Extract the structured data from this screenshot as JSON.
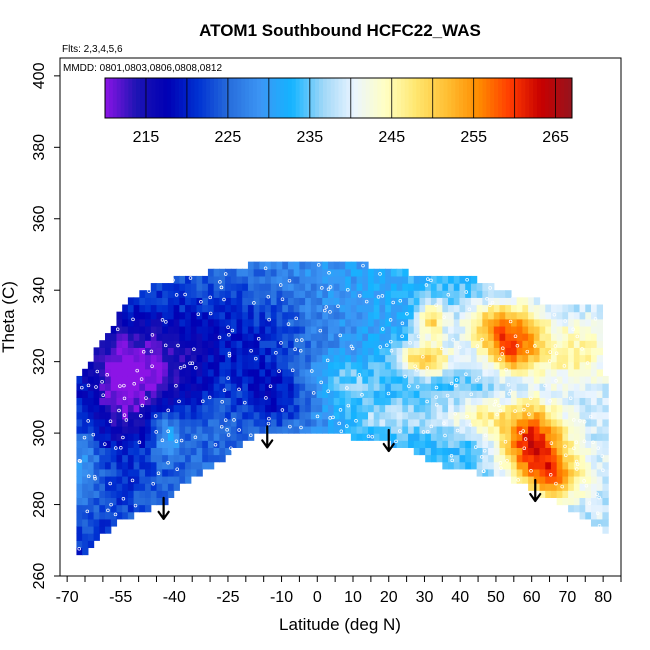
{
  "chart_data": {
    "type": "heatmap",
    "title": "ATOM1 Southbound HCFC22_WAS",
    "notes": {
      "flights": "Flts: 2,3,4,5,6",
      "dates": "MMDD: 0801,0803,0806,0808,0812"
    },
    "xlabel": "Latitude (deg N)",
    "ylabel": "Theta (C)",
    "xlim": [
      -72,
      85
    ],
    "ylim": [
      260,
      405
    ],
    "x_ticks": [
      {
        "v": -70,
        "t": "-70"
      },
      {
        "v": -55,
        "t": "-55"
      },
      {
        "v": -40,
        "t": "-40"
      },
      {
        "v": -25,
        "t": "-25"
      },
      {
        "v": -10,
        "t": "-10"
      },
      {
        "v": 0,
        "t": "0"
      },
      {
        "v": 10,
        "t": "10"
      },
      {
        "v": 20,
        "t": "20"
      },
      {
        "v": 30,
        "t": "30"
      },
      {
        "v": 40,
        "t": "40"
      },
      {
        "v": 50,
        "t": "50"
      },
      {
        "v": 60,
        "t": "60"
      },
      {
        "v": 70,
        "t": "70"
      },
      {
        "v": 80,
        "t": "80"
      }
    ],
    "x_minor_ticks": [
      -65,
      -60,
      -50,
      -45,
      -35,
      -30,
      -20,
      -15,
      -5,
      5,
      15,
      25,
      35,
      45,
      55,
      65,
      75,
      85
    ],
    "y_ticks": [
      {
        "v": 260,
        "t": "260"
      },
      {
        "v": 280,
        "t": "280"
      },
      {
        "v": 300,
        "t": "300"
      },
      {
        "v": 320,
        "t": "320"
      },
      {
        "v": 340,
        "t": "340"
      },
      {
        "v": 360,
        "t": "360"
      },
      {
        "v": 380,
        "t": "380"
      },
      {
        "v": 400,
        "t": "400"
      }
    ],
    "colorbar": {
      "range": [
        210,
        267
      ],
      "labels": [
        {
          "v": 215,
          "t": "215"
        },
        {
          "v": 225,
          "t": "225"
        },
        {
          "v": 235,
          "t": "235"
        },
        {
          "v": 245,
          "t": "245"
        },
        {
          "v": 255,
          "t": "255"
        },
        {
          "v": 265,
          "t": "265"
        }
      ],
      "dividers": [
        215,
        220,
        225,
        230,
        235,
        240,
        245,
        250,
        255,
        260,
        265
      ],
      "colors": [
        "#8c14e6",
        "#1e14b4",
        "#0000b4",
        "#0032d2",
        "#286edc",
        "#3c96f5",
        "#14b4ff",
        "#9fd7f8",
        "#ebf5ff",
        "#ffffc3",
        "#ffe66e",
        "#ffbe32",
        "#ff8c00",
        "#ff3c00",
        "#c80000",
        "#96141e"
      ]
    },
    "arrows": [
      {
        "lat": -43,
        "theta": 276
      },
      {
        "lat": -14,
        "theta": 296
      },
      {
        "lat": 20,
        "theta": 295
      },
      {
        "lat": 61,
        "theta": 281
      }
    ],
    "domain_top": [
      [
        -68,
        314
      ],
      [
        -60,
        326
      ],
      [
        -53,
        337
      ],
      [
        -45,
        342
      ],
      [
        -35,
        344
      ],
      [
        -25,
        346
      ],
      [
        -15,
        348
      ],
      [
        -5,
        349
      ],
      [
        5,
        349
      ],
      [
        15,
        347
      ],
      [
        25,
        345
      ],
      [
        35,
        344
      ],
      [
        45,
        343
      ],
      [
        55,
        339
      ],
      [
        65,
        336
      ],
      [
        75,
        337
      ],
      [
        80,
        335
      ]
    ],
    "domain_right": [
      [
        80,
        335
      ],
      [
        81,
        305
      ],
      [
        82,
        295
      ],
      [
        81,
        272
      ]
    ],
    "domain_bottom": [
      [
        81,
        272
      ],
      [
        75,
        276
      ],
      [
        65,
        282
      ],
      [
        55,
        287
      ],
      [
        45,
        289
      ],
      [
        35,
        291
      ],
      [
        25,
        296
      ],
      [
        15,
        298
      ],
      [
        5,
        300
      ],
      [
        -5,
        299
      ],
      [
        -12,
        301
      ],
      [
        -20,
        298
      ],
      [
        -30,
        290
      ],
      [
        -38,
        285
      ],
      [
        -43,
        280
      ],
      [
        -50,
        278
      ],
      [
        -56,
        275
      ],
      [
        -62,
        270
      ],
      [
        -66,
        266
      ],
      [
        -68,
        265
      ]
    ],
    "field_model": {
      "base_value": 229,
      "lat_slope": 0.12,
      "anomalies": [
        {
          "lat": -45,
          "theta": 318,
          "value": -10,
          "rx": 15,
          "ry": 14
        },
        {
          "lat": -55,
          "theta": 312,
          "value": -9,
          "rx": 8,
          "ry": 16
        },
        {
          "lat": -20,
          "theta": 328,
          "value": -6,
          "rx": 22,
          "ry": 14
        },
        {
          "lat": -12,
          "theta": 310,
          "value": -8,
          "rx": 10,
          "ry": 10
        },
        {
          "lat": -66,
          "theta": 290,
          "value": 8,
          "rx": 6,
          "ry": 12
        },
        {
          "lat": -42,
          "theta": 300,
          "value": 9,
          "rx": 4,
          "ry": 6
        },
        {
          "lat": 30,
          "theta": 321,
          "value": 18,
          "rx": 8,
          "ry": 5
        },
        {
          "lat": 32,
          "theta": 332,
          "value": 16,
          "rx": 4,
          "ry": 5
        },
        {
          "lat": 45,
          "theta": 305,
          "value": 10,
          "rx": 10,
          "ry": 5
        },
        {
          "lat": 52,
          "theta": 330,
          "value": 20,
          "rx": 11,
          "ry": 7
        },
        {
          "lat": 55,
          "theta": 322,
          "value": 16,
          "rx": 8,
          "ry": 6
        },
        {
          "lat": 60,
          "theta": 298,
          "value": 25,
          "rx": 9,
          "ry": 10
        },
        {
          "lat": 66,
          "theta": 288,
          "value": 16,
          "rx": 8,
          "ry": 7
        },
        {
          "lat": 72,
          "theta": 322,
          "value": 8,
          "rx": 10,
          "ry": 8
        },
        {
          "lat": 8,
          "theta": 315,
          "value": 6,
          "rx": 10,
          "ry": 6
        },
        {
          "lat": 20,
          "theta": 305,
          "value": 7,
          "rx": 12,
          "ry": 5
        }
      ]
    }
  }
}
